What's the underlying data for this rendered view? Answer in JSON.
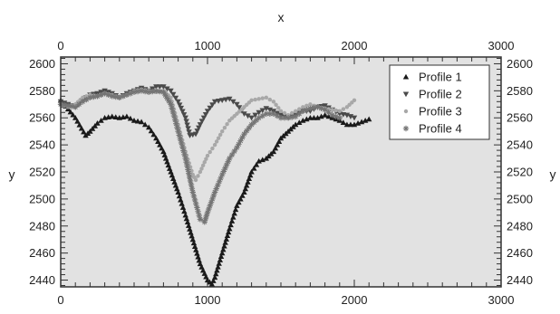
{
  "chart_data": {
    "type": "line",
    "title": "",
    "xlabel": "x",
    "ylabel": "y",
    "xlim": [
      0,
      3000
    ],
    "ylim": [
      2435,
      2605
    ],
    "x_ticks": [
      0,
      1000,
      2000,
      3000
    ],
    "y_ticks": [
      2440,
      2460,
      2480,
      2500,
      2520,
      2540,
      2560,
      2580,
      2600
    ],
    "grid": false,
    "legend_position": "top-right",
    "colors": {
      "plot_background": "#e2e2e2",
      "frame": "#333333",
      "profile_1": "#1a1a1a",
      "profile_2": "#4a4a4a",
      "profile_3": "#a8a8a8",
      "profile_4": "#747474"
    },
    "series": [
      {
        "name": "Profile 1",
        "marker": "triangle-up",
        "x": [
          0,
          100,
          170,
          200,
          250,
          300,
          350,
          400,
          450,
          500,
          550,
          600,
          650,
          700,
          750,
          800,
          850,
          900,
          950,
          1000,
          1030,
          1050,
          1100,
          1150,
          1200,
          1250,
          1300,
          1350,
          1400,
          1450,
          1500,
          1550,
          1600,
          1650,
          1700,
          1750,
          1800,
          1850,
          1900,
          1950,
          2000,
          2050,
          2100
        ],
        "y": [
          2573,
          2560,
          2547,
          2550,
          2556,
          2560,
          2561,
          2560,
          2561,
          2558,
          2557,
          2553,
          2545,
          2535,
          2520,
          2505,
          2488,
          2470,
          2452,
          2440,
          2437,
          2442,
          2460,
          2478,
          2495,
          2505,
          2520,
          2528,
          2530,
          2535,
          2545,
          2550,
          2555,
          2558,
          2560,
          2560,
          2562,
          2560,
          2558,
          2555,
          2555,
          2557,
          2559
        ]
      },
      {
        "name": "Profile 2",
        "marker": "triangle-down",
        "x": [
          0,
          50,
          100,
          150,
          200,
          250,
          300,
          350,
          400,
          450,
          500,
          550,
          600,
          650,
          700,
          750,
          800,
          850,
          880,
          920,
          950,
          1000,
          1050,
          1100,
          1150,
          1200,
          1250,
          1300,
          1350,
          1400,
          1450,
          1500,
          1550,
          1600,
          1650,
          1700,
          1750,
          1800,
          1850,
          1900,
          1950,
          2000
        ],
        "y": [
          2572,
          2570,
          2568,
          2573,
          2577,
          2578,
          2580,
          2578,
          2575,
          2578,
          2580,
          2582,
          2580,
          2583,
          2583,
          2580,
          2572,
          2560,
          2547,
          2548,
          2555,
          2565,
          2572,
          2573,
          2574,
          2570,
          2563,
          2560,
          2564,
          2567,
          2565,
          2562,
          2560,
          2562,
          2565,
          2565,
          2568,
          2569,
          2566,
          2563,
          2562,
          2560
        ]
      },
      {
        "name": "Profile 3",
        "marker": "dot",
        "x": [
          0,
          50,
          100,
          150,
          200,
          250,
          300,
          350,
          400,
          450,
          500,
          550,
          600,
          650,
          700,
          750,
          800,
          850,
          900,
          920,
          950,
          1000,
          1050,
          1100,
          1150,
          1200,
          1250,
          1300,
          1350,
          1400,
          1450,
          1500,
          1550,
          1600,
          1650,
          1700,
          1750,
          1800,
          1850,
          1900,
          1950,
          2000
        ],
        "y": [
          2570,
          2568,
          2570,
          2575,
          2577,
          2576,
          2578,
          2577,
          2575,
          2577,
          2580,
          2581,
          2580,
          2579,
          2580,
          2575,
          2555,
          2535,
          2518,
          2514,
          2520,
          2532,
          2540,
          2550,
          2558,
          2563,
          2568,
          2573,
          2574,
          2575,
          2572,
          2565,
          2562,
          2565,
          2568,
          2570,
          2568,
          2567,
          2566,
          2565,
          2568,
          2573
        ]
      },
      {
        "name": "Profile 4",
        "marker": "star",
        "x": [
          0,
          50,
          100,
          150,
          200,
          250,
          300,
          350,
          400,
          450,
          500,
          550,
          600,
          650,
          700,
          750,
          800,
          850,
          900,
          950,
          980,
          1000,
          1050,
          1100,
          1150,
          1200,
          1250,
          1300,
          1350,
          1400,
          1450,
          1500,
          1550,
          1600,
          1650,
          1700,
          1750,
          1800,
          1850,
          1900
        ],
        "y": [
          2570,
          2569,
          2568,
          2572,
          2575,
          2576,
          2578,
          2576,
          2575,
          2577,
          2579,
          2580,
          2579,
          2580,
          2579,
          2570,
          2550,
          2530,
          2505,
          2485,
          2483,
          2490,
          2505,
          2518,
          2530,
          2538,
          2548,
          2555,
          2560,
          2563,
          2563,
          2560,
          2560,
          2561,
          2565,
          2567,
          2568,
          2566,
          2562,
          2560
        ]
      }
    ]
  }
}
